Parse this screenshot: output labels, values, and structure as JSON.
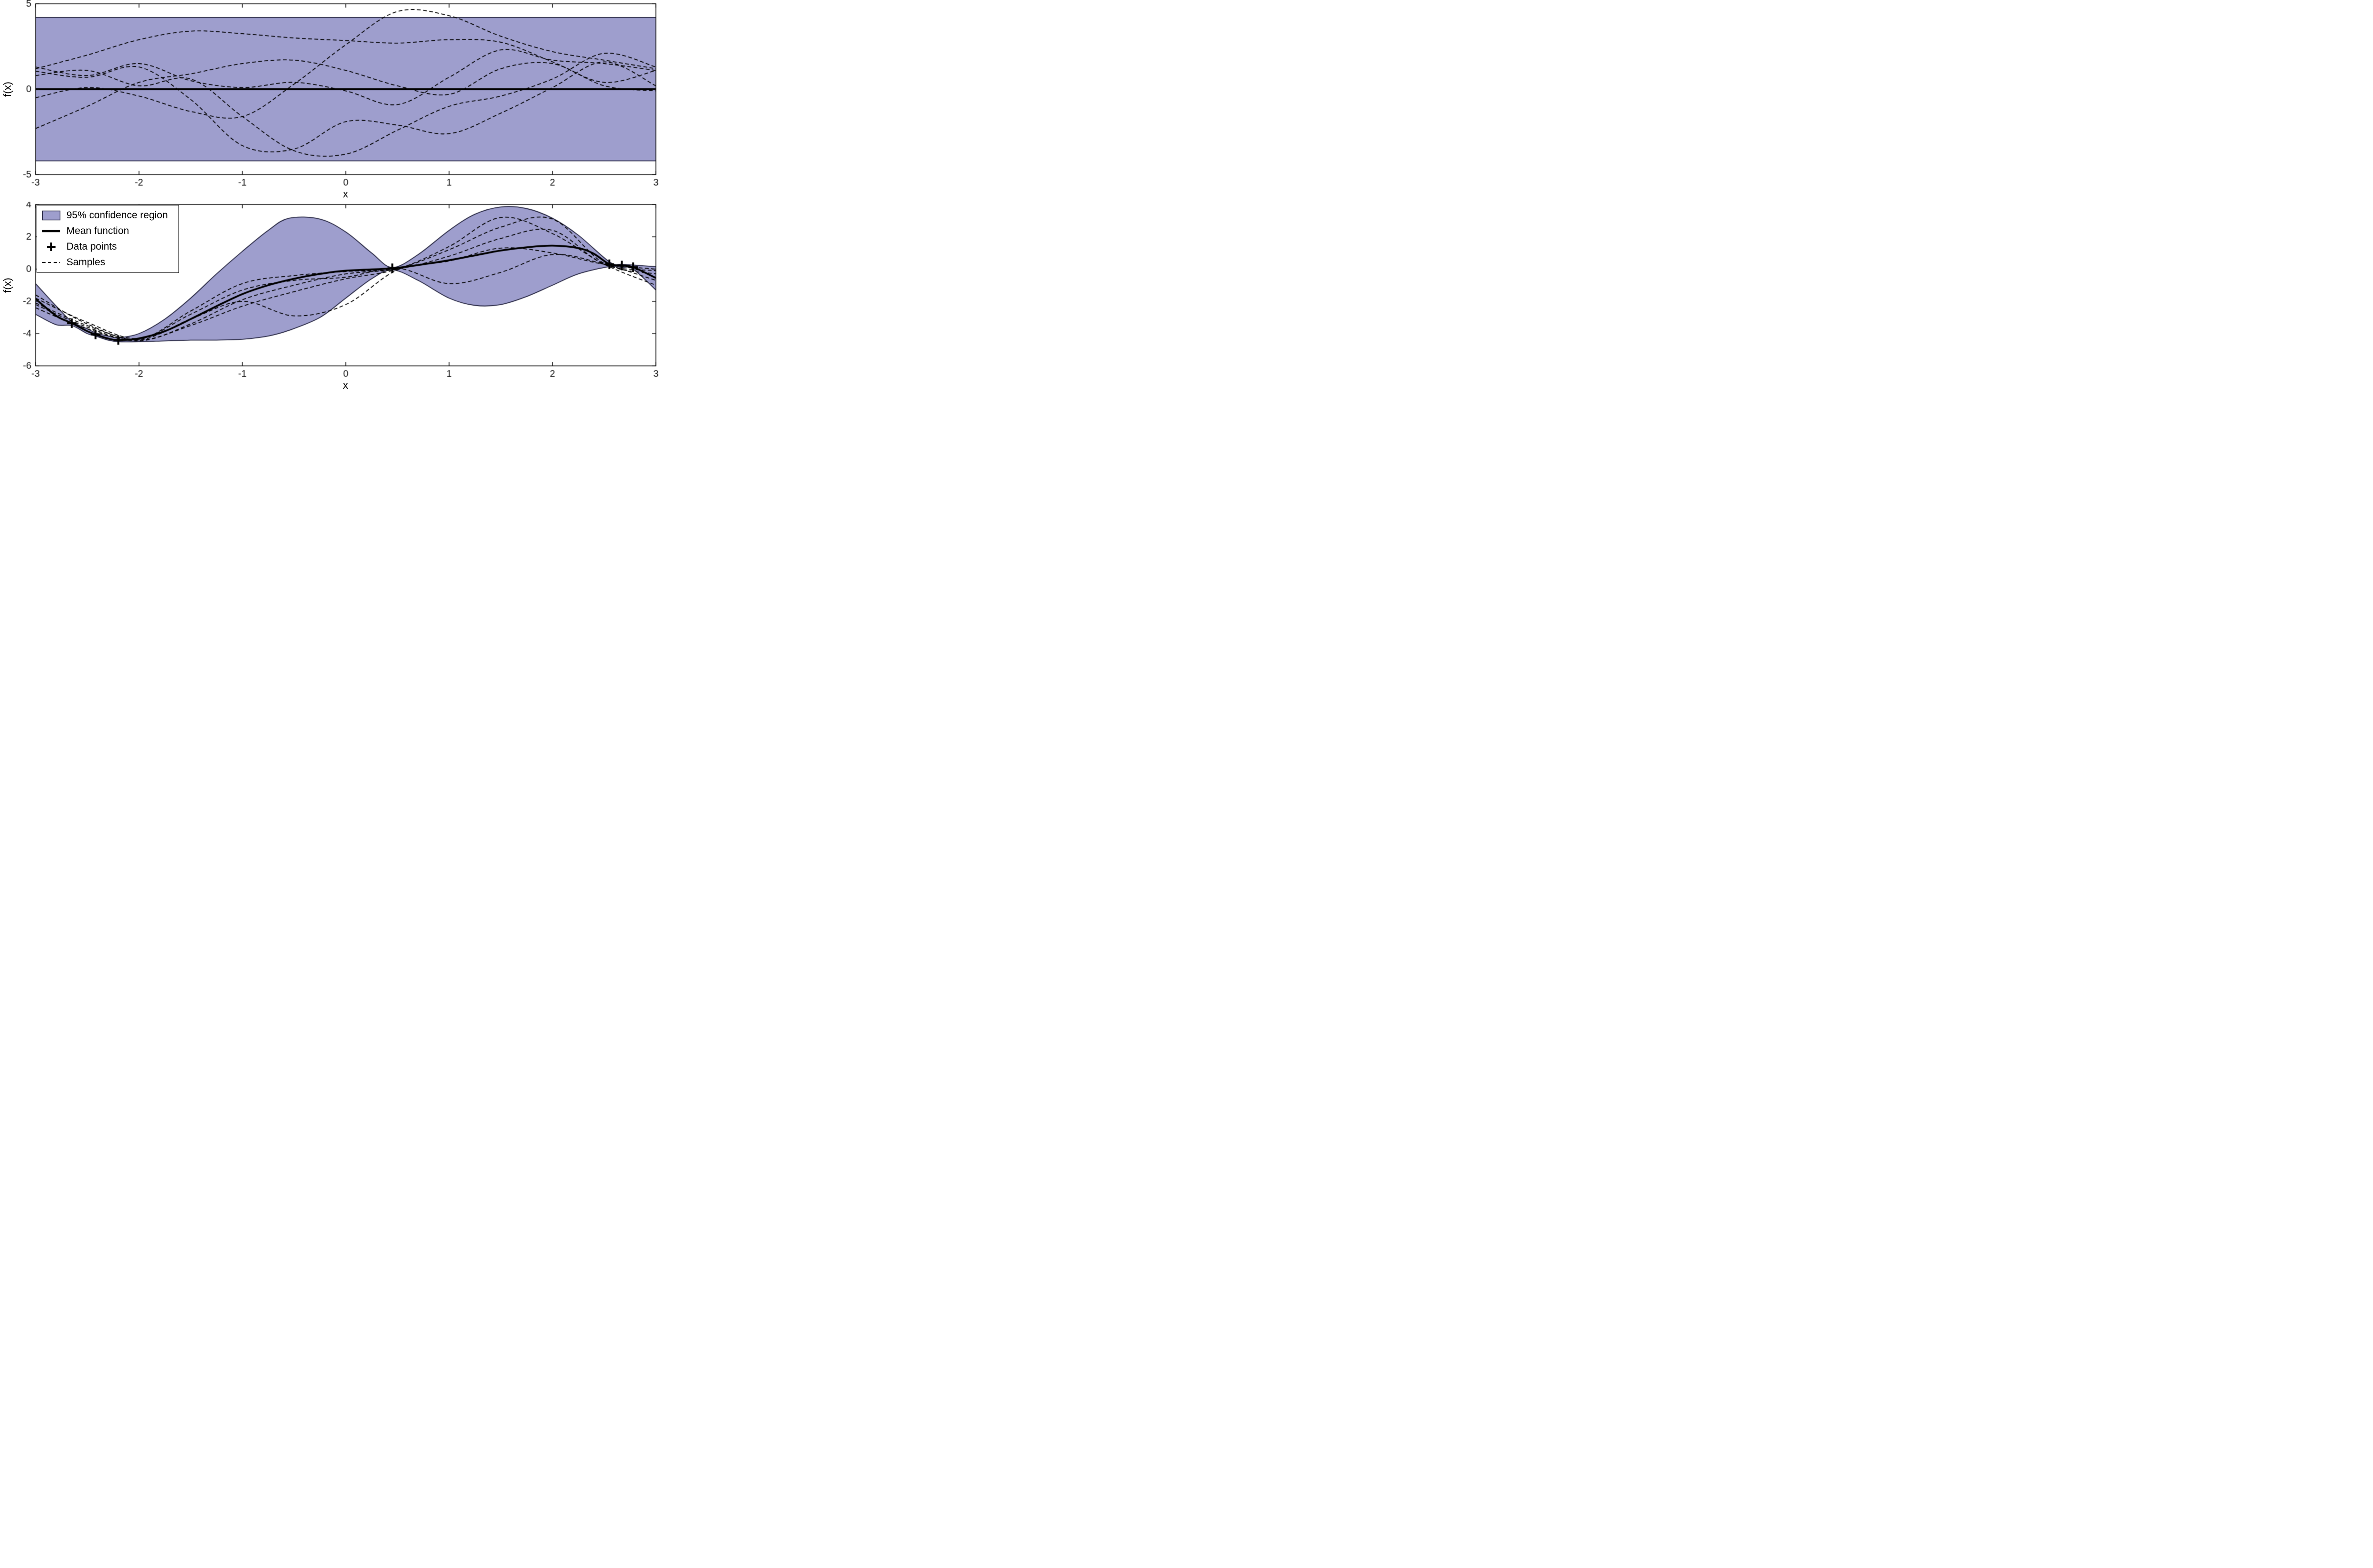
{
  "style": {
    "background": "#ffffff",
    "band_fill": "#9e9ecd",
    "band_edge": "#23233f",
    "curve_color": "#000000",
    "axis_color": "#111111"
  },
  "legend": {
    "items": [
      {
        "label": "95% confidence region",
        "marker": "patch"
      },
      {
        "label": "Mean function",
        "marker": "thick-line"
      },
      {
        "label": "Data points",
        "marker": "plus"
      },
      {
        "label": "Samples",
        "marker": "dashed-line"
      }
    ]
  },
  "chart_data": [
    {
      "type": "line",
      "name": "gp-prior",
      "xlabel": "x",
      "ylabel": "f(x)",
      "xlim": [
        -3,
        3
      ],
      "ylim": [
        -5,
        5
      ],
      "xticks": [
        -3,
        -2,
        -1,
        0,
        1,
        2,
        3
      ],
      "yticks": [
        -5,
        0,
        5
      ],
      "confidence_band": {
        "x": [
          -3,
          3
        ],
        "upper": [
          4.2,
          4.2
        ],
        "lower": [
          -4.2,
          -4.2
        ]
      },
      "mean": {
        "x": [
          -3,
          3
        ],
        "y": [
          0,
          0
        ]
      },
      "samples_x": [
        -3,
        -2.5,
        -2,
        -1.5,
        -1,
        -0.5,
        0,
        0.5,
        1,
        1.5,
        2,
        2.5,
        3
      ],
      "samples": [
        [
          1.2,
          2.0,
          2.9,
          3.4,
          3.25,
          3.0,
          2.85,
          2.7,
          2.9,
          2.75,
          1.6,
          0.4,
          1.1
        ],
        [
          -0.5,
          0.1,
          -0.4,
          -1.3,
          -1.6,
          0.3,
          2.6,
          4.55,
          4.3,
          3.1,
          2.2,
          1.7,
          1.2
        ],
        [
          1.05,
          0.7,
          1.3,
          -0.6,
          -3.3,
          -3.5,
          -1.9,
          -2.1,
          -2.6,
          -1.4,
          0.1,
          1.6,
          0.2
        ],
        [
          0.8,
          1.1,
          0.2,
          0.6,
          -1.6,
          -3.6,
          -3.8,
          -2.4,
          -1.0,
          -0.4,
          0.6,
          2.1,
          1.3
        ],
        [
          -2.3,
          -1.0,
          0.4,
          0.9,
          1.5,
          1.7,
          1.1,
          0.2,
          -0.3,
          1.2,
          1.5,
          0.2,
          -0.1
        ],
        [
          1.3,
          0.8,
          1.5,
          0.5,
          0.1,
          0.4,
          -0.1,
          -0.9,
          0.7,
          2.3,
          1.7,
          1.5,
          1.1
        ]
      ]
    },
    {
      "type": "line",
      "name": "gp-posterior",
      "xlabel": "x",
      "ylabel": "f(x)",
      "xlim": [
        -3,
        3
      ],
      "ylim": [
        -6,
        4
      ],
      "xticks": [
        -3,
        -2,
        -1,
        0,
        1,
        2,
        3
      ],
      "yticks": [
        -6,
        -4,
        -2,
        0,
        2,
        4
      ],
      "confidence_band": {
        "x": [
          -3.0,
          -2.8,
          -2.65,
          -2.5,
          -2.42,
          -2.3,
          -2.2,
          -2.0,
          -1.75,
          -1.5,
          -1.25,
          -1.0,
          -0.75,
          -0.55,
          -0.25,
          0.0,
          0.25,
          0.45,
          0.7,
          1.0,
          1.25,
          1.5,
          1.75,
          2.0,
          2.25,
          2.55,
          2.67,
          2.78,
          3.0
        ],
        "upper": [
          -0.9,
          -2.3,
          -3.25,
          -3.7,
          -3.95,
          -4.15,
          -4.25,
          -4.0,
          -3.1,
          -1.8,
          -0.3,
          1.1,
          2.4,
          3.15,
          3.1,
          2.3,
          1.0,
          0.1,
          0.9,
          2.4,
          3.4,
          3.85,
          3.75,
          3.15,
          2.1,
          0.45,
          0.3,
          0.25,
          0.15
        ],
        "lower": [
          -2.8,
          -3.45,
          -3.5,
          -4.0,
          -4.15,
          -4.4,
          -4.5,
          -4.5,
          -4.45,
          -4.4,
          -4.4,
          -4.35,
          -4.15,
          -3.8,
          -3.0,
          -1.8,
          -0.6,
          -0.05,
          -0.7,
          -1.8,
          -2.25,
          -2.2,
          -1.7,
          -1.0,
          -0.3,
          0.15,
          0.1,
          0.0,
          -1.3
        ]
      },
      "mean": {
        "x": [
          -3.0,
          -2.8,
          -2.65,
          -2.5,
          -2.42,
          -2.3,
          -2.2,
          -2.0,
          -1.75,
          -1.5,
          -1.25,
          -1.0,
          -0.75,
          -0.5,
          -0.25,
          0.0,
          0.45,
          0.75,
          1.0,
          1.25,
          1.5,
          1.75,
          2.0,
          2.25,
          2.4,
          2.55,
          2.67,
          2.78,
          3.0
        ],
        "y": [
          -1.85,
          -2.9,
          -3.35,
          -3.85,
          -4.05,
          -4.3,
          -4.4,
          -4.3,
          -3.85,
          -3.1,
          -2.3,
          -1.55,
          -1.0,
          -0.6,
          -0.3,
          -0.1,
          0.05,
          0.3,
          0.55,
          0.85,
          1.15,
          1.35,
          1.45,
          1.3,
          0.95,
          0.3,
          0.22,
          0.12,
          -0.55
        ]
      },
      "data_points": [
        [
          -2.65,
          -3.35
        ],
        [
          -2.42,
          -4.05
        ],
        [
          -2.2,
          -4.4
        ],
        [
          0.45,
          0.05
        ],
        [
          2.55,
          0.3
        ],
        [
          2.67,
          0.22
        ],
        [
          2.78,
          0.12
        ]
      ],
      "samples_x": [
        -3,
        -2.5,
        -2,
        -1.5,
        -1,
        -0.5,
        0,
        0.5,
        1,
        1.5,
        2,
        2.5,
        3
      ],
      "samples": [
        [
          -1.6,
          -3.4,
          -4.35,
          -2.6,
          -0.9,
          -0.4,
          -0.15,
          0.05,
          1.2,
          2.6,
          3.1,
          0.35,
          -0.3
        ],
        [
          -2.2,
          -3.6,
          -4.45,
          -3.4,
          -1.9,
          -1.0,
          -0.3,
          0.0,
          0.8,
          1.9,
          2.4,
          0.3,
          -0.1
        ],
        [
          -2.4,
          -3.7,
          -4.4,
          -3.1,
          -2.0,
          -2.9,
          -2.2,
          -0.05,
          0.5,
          1.3,
          1.0,
          0.3,
          0.0
        ],
        [
          -1.8,
          -3.3,
          -4.3,
          -2.8,
          -1.3,
          -0.7,
          -0.5,
          0.05,
          -0.9,
          -0.2,
          0.9,
          0.3,
          -0.7
        ],
        [
          -2.1,
          -3.5,
          -4.4,
          -3.5,
          -2.3,
          -1.4,
          -0.6,
          0.0,
          1.4,
          3.2,
          2.2,
          0.3,
          -1.0
        ]
      ]
    }
  ]
}
